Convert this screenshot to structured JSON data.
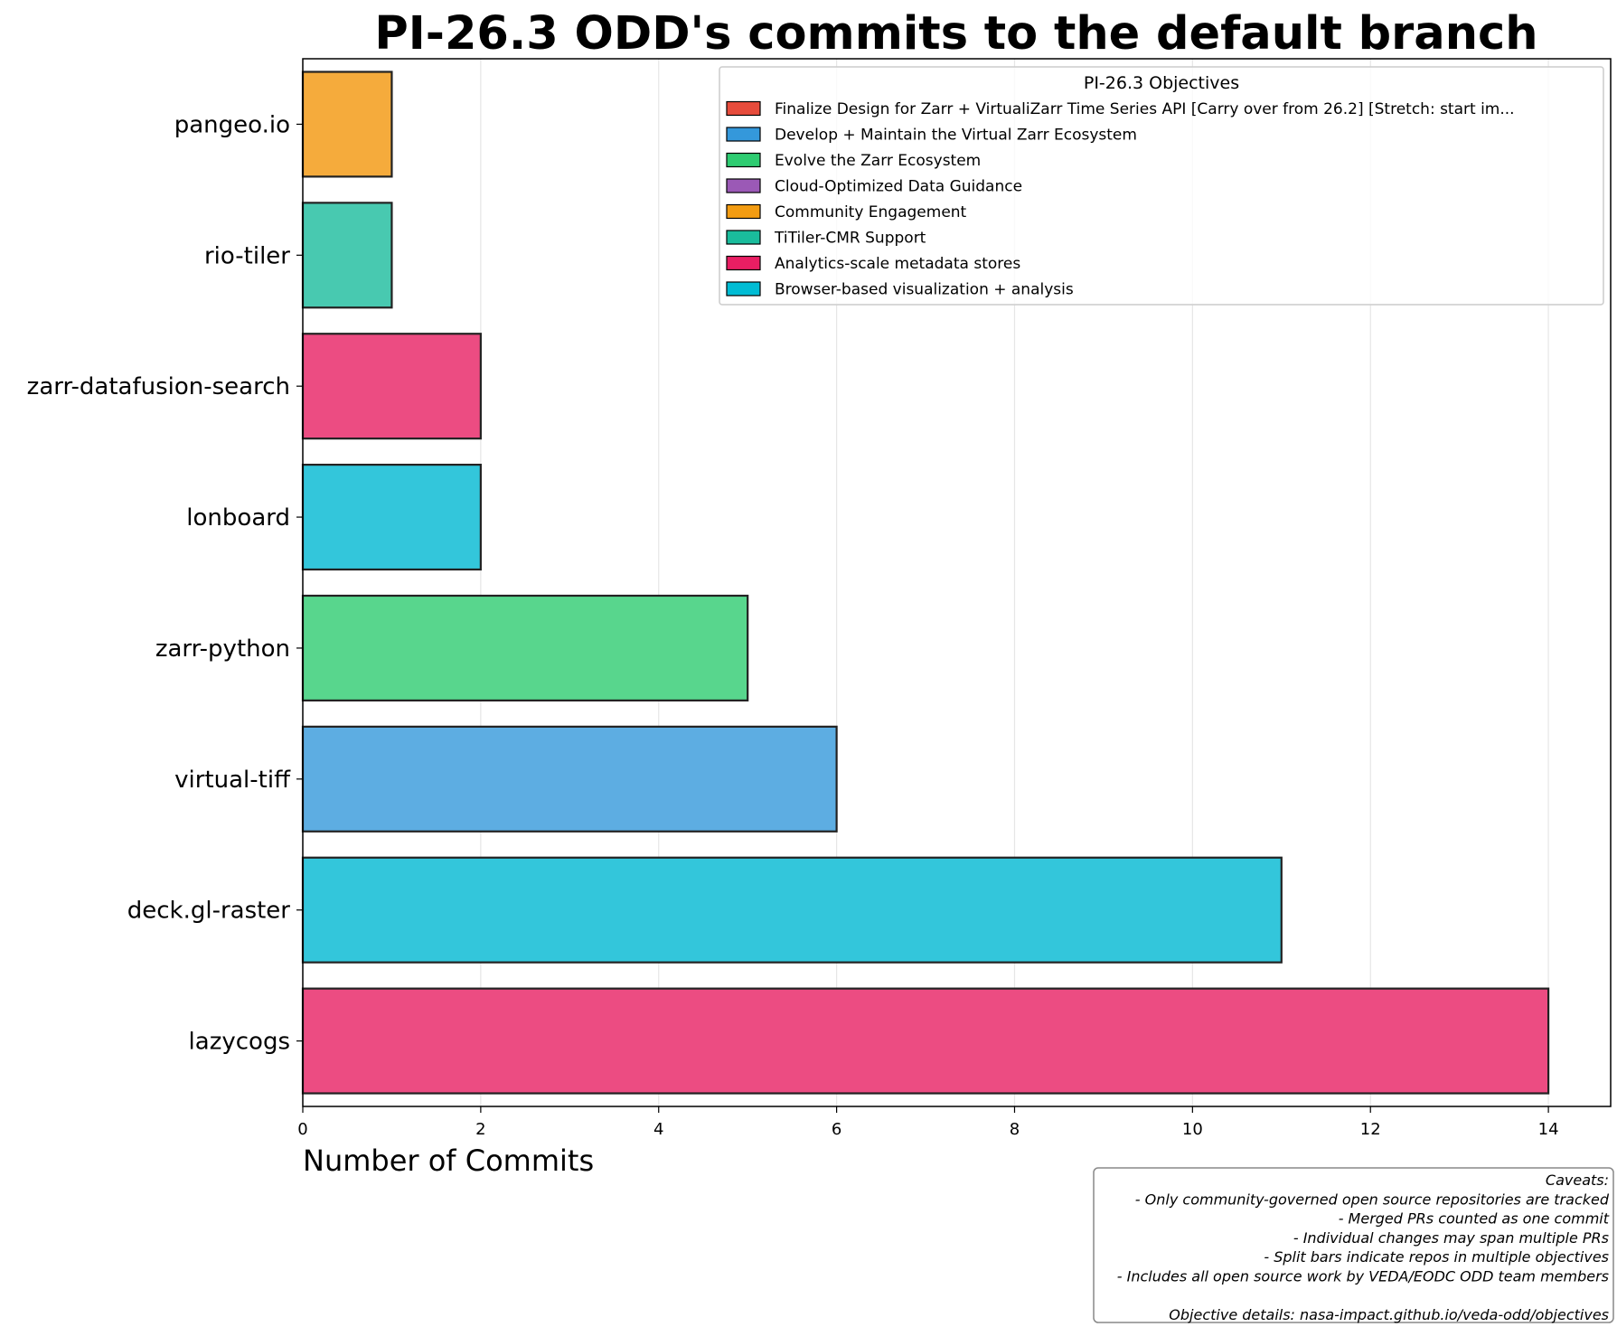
{
  "chart_data": {
    "type": "bar",
    "orientation": "horizontal",
    "title": "PI-26.3 ODD's commits to the default branch",
    "xlabel": "Number of Commits",
    "ylabel": "",
    "xlim": [
      0,
      14.7
    ],
    "xticks": [
      0,
      2,
      4,
      6,
      8,
      10,
      12,
      14
    ],
    "grid": "vertical",
    "categories": [
      "pangeo.io",
      "rio-tiler",
      "zarr-datafusion-search",
      "lonboard",
      "zarr-python",
      "virtual-tiff",
      "deck.gl-raster",
      "lazycogs"
    ],
    "values": [
      1,
      1,
      2,
      2,
      5,
      6,
      11,
      14
    ],
    "bar_colors": [
      "#F5AB3C",
      "#48C9B0",
      "#EC4C82",
      "#33C6DB",
      "#58D68D",
      "#5DADE2",
      "#33C6DB",
      "#EC4C82"
    ],
    "legend": {
      "title": "PI-26.3 Objectives",
      "placement": "top-right",
      "entries": [
        {
          "label": "Finalize Design for Zarr + VirtualiZarr Time Series API [Carry over from 26.2] [Stretch: start im...",
          "color": "#E74C3C"
        },
        {
          "label": "Develop + Maintain the Virtual Zarr Ecosystem",
          "color": "#3498DB"
        },
        {
          "label": "Evolve the Zarr Ecosystem",
          "color": "#2ECC71"
        },
        {
          "label": "Cloud-Optimized Data Guidance",
          "color": "#9B59B6"
        },
        {
          "label": "Community Engagement",
          "color": "#F39C12"
        },
        {
          "label": " TiTiler-CMR Support",
          "color": "#1ABC9C"
        },
        {
          "label": " Analytics-scale metadata stores",
          "color": "#E91E63"
        },
        {
          "label": "Browser-based visualization + analysis",
          "color": "#00BCD4"
        }
      ]
    },
    "caveats": [
      "Caveats:",
      "- Only community-governed open source repositories are tracked",
      "- Merged PRs counted as one commit",
      "- Individual changes may span multiple PRs",
      "- Split bars indicate repos in multiple objectives",
      "- Includes all open source work by VEDA/EODC ODD team members",
      "",
      "Objective details: nasa-impact.github.io/veda-odd/objectives"
    ]
  }
}
